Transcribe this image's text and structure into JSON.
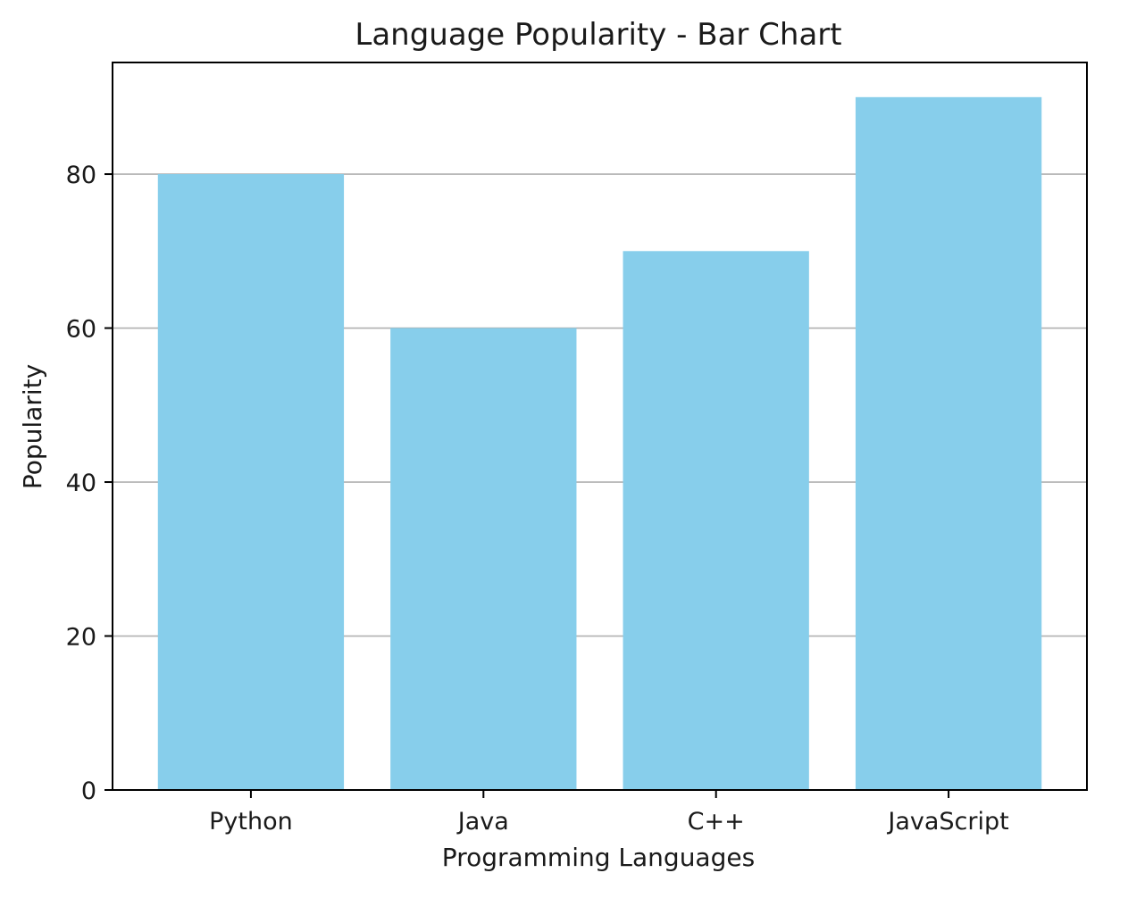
{
  "chart_data": {
    "type": "bar",
    "title": "Language Popularity - Bar Chart",
    "xlabel": "Programming Languages",
    "ylabel": "Popularity",
    "categories": [
      "Python",
      "Java",
      "C++",
      "JavaScript"
    ],
    "values": [
      80,
      60,
      70,
      90
    ],
    "ylim": [
      0,
      94.5
    ],
    "yticks": [
      0,
      20,
      40,
      60,
      80
    ],
    "grid": "y",
    "bar_color": "#87CEEB",
    "grid_color": "#b0b0b0"
  }
}
